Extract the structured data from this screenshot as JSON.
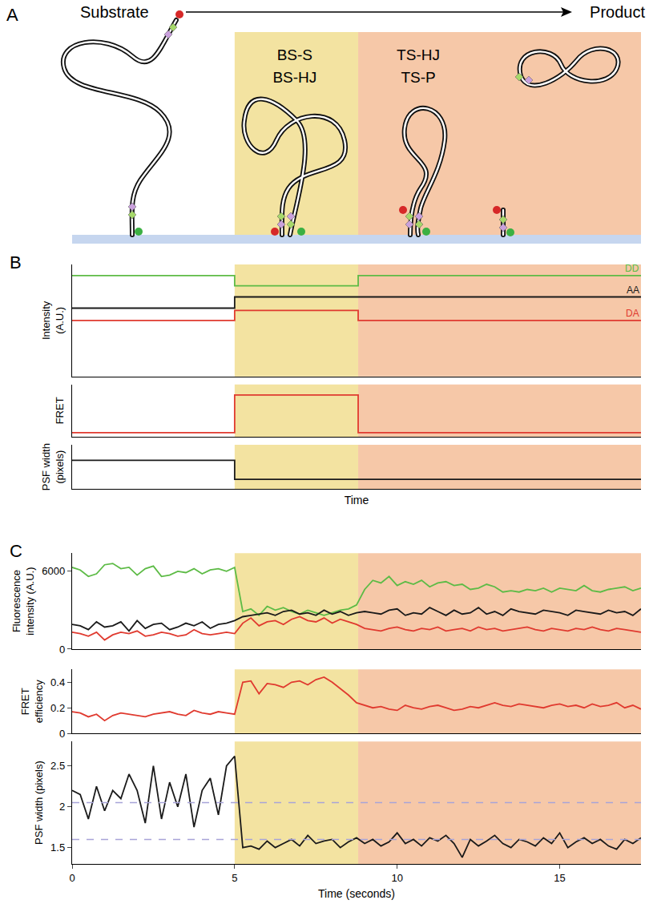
{
  "diagram": {
    "panel": "A",
    "start": "Substrate",
    "end": "Product",
    "stages": [
      {
        "lines": [
          "BS-S",
          "BS-HJ"
        ]
      },
      {
        "lines": [
          "TS-HJ",
          "TS-P"
        ]
      }
    ]
  },
  "chart_data": [
    {
      "type": "line",
      "title": "B",
      "ylabel": "Intensity\n(A.U.)",
      "x": [
        0,
        5,
        8.8,
        17.5
      ],
      "series": [
        {
          "name": "DD",
          "color": "#5dbb46",
          "values": [
            0.9,
            0.81,
            0.9,
            0.9
          ]
        },
        {
          "name": "AA",
          "color": "#1a1a1a",
          "values": [
            0.61,
            0.71,
            0.71,
            0.71
          ]
        },
        {
          "name": "DA",
          "color": "#e03a2f",
          "values": [
            0.5,
            0.59,
            0.5,
            0.5
          ]
        }
      ],
      "xlim": [
        0,
        17.5
      ],
      "ylim": [
        0,
        1
      ],
      "tick_labels": false,
      "line_style": "step",
      "regions": [
        {
          "x0": 5,
          "x1": 8.8,
          "color": "#f3e3a1"
        },
        {
          "x0": 8.8,
          "x1": 17.5,
          "color": "#f6c8a8"
        }
      ]
    },
    {
      "type": "line",
      "ylabel": "FRET",
      "x": [
        0,
        5,
        8.8,
        17.5
      ],
      "color": "#e03a2f",
      "values": [
        0.08,
        0.8,
        0.08,
        0.08
      ],
      "xlim": [
        0,
        17.5
      ],
      "ylim": [
        0,
        1
      ],
      "tick_labels": false,
      "line_style": "step",
      "regions": [
        {
          "x0": 5,
          "x1": 8.8,
          "color": "#f3e3a1"
        },
        {
          "x0": 8.8,
          "x1": 17.5,
          "color": "#f6c8a8"
        }
      ]
    },
    {
      "type": "line",
      "ylabel": "PSF width\n(pixels)",
      "xlabel": "Time",
      "x": [
        0,
        5,
        8.8,
        17.5
      ],
      "color": "#1a1a1a",
      "values": [
        0.65,
        0.22,
        0.22,
        0.22
      ],
      "xlim": [
        0,
        17.5
      ],
      "ylim": [
        0,
        1
      ],
      "tick_labels": false,
      "line_style": "step",
      "regions": [
        {
          "x0": 5,
          "x1": 8.8,
          "color": "#f3e3a1"
        },
        {
          "x0": 8.8,
          "x1": 17.5,
          "color": "#f6c8a8"
        }
      ]
    },
    {
      "type": "line",
      "title": "C",
      "ylabel": "Fluorescence\nintensity (A.U.)",
      "x": [
        0,
        0.25,
        0.5,
        0.75,
        1,
        1.25,
        1.5,
        1.75,
        2,
        2.25,
        2.5,
        2.75,
        3,
        3.25,
        3.5,
        3.75,
        4,
        4.25,
        4.5,
        4.75,
        5,
        5.25,
        5.5,
        5.75,
        6,
        6.25,
        6.5,
        6.75,
        7,
        7.25,
        7.5,
        7.75,
        8,
        8.25,
        8.5,
        8.75,
        9,
        9.25,
        9.5,
        9.75,
        10,
        10.25,
        10.5,
        10.75,
        11,
        11.25,
        11.5,
        11.75,
        12,
        12.25,
        12.5,
        12.75,
        13,
        13.25,
        13.5,
        13.75,
        14,
        14.25,
        14.5,
        14.75,
        15,
        15.25,
        15.5,
        15.75,
        16,
        16.25,
        16.5,
        16.75,
        17,
        17.25,
        17.5
      ],
      "series": [
        {
          "color": "#5dbb46",
          "values": [
            6300,
            6100,
            5600,
            5800,
            6500,
            6600,
            6200,
            6300,
            5700,
            6200,
            6400,
            5600,
            5700,
            6000,
            5900,
            6200,
            5800,
            6100,
            6200,
            6000,
            6300,
            2900,
            3100,
            2600,
            3300,
            3000,
            3200,
            2900,
            2700,
            3000,
            2800,
            2600,
            2800,
            3000,
            3100,
            3400,
            4600,
            5300,
            5100,
            5600,
            4900,
            5200,
            5000,
            5300,
            4800,
            5100,
            5200,
            4900,
            5000,
            4600,
            4700,
            5000,
            4800,
            4400,
            4500,
            4400,
            4600,
            4500,
            4700,
            4400,
            4700,
            4600,
            4500,
            4900,
            4500,
            4400,
            4600,
            4700,
            4800,
            4500,
            4700
          ]
        },
        {
          "color": "#1a1a1a",
          "values": [
            1900,
            1800,
            1500,
            2100,
            1700,
            1800,
            2100,
            1400,
            2200,
            1600,
            1900,
            2000,
            1500,
            1700,
            2000,
            1800,
            2100,
            1600,
            1900,
            2000,
            2200,
            2500,
            2600,
            2700,
            2800,
            2600,
            2900,
            3000,
            2700,
            2800,
            2600,
            3000,
            2700,
            2900,
            2600,
            2800,
            2900,
            2800,
            2700,
            3000,
            3100,
            2600,
            2800,
            2700,
            3200,
            2900,
            2600,
            3000,
            2700,
            2800,
            3200,
            2700,
            2900,
            2600,
            3100,
            2900,
            2800,
            2700,
            3000,
            2900,
            2800,
            2600,
            3000,
            2900,
            2800,
            2700,
            3000,
            2800,
            2900,
            2600,
            3100
          ]
        },
        {
          "color": "#e03a2f",
          "values": [
            1300,
            1200,
            1000,
            1300,
            700,
            1100,
            1300,
            1200,
            1400,
            1000,
            1100,
            1300,
            1200,
            1000,
            1100,
            1500,
            1200,
            1100,
            1200,
            1300,
            1200,
            2000,
            2400,
            1800,
            2100,
            2200,
            1900,
            2300,
            2500,
            2200,
            2100,
            2400,
            2000,
            2300,
            2100,
            1900,
            1600,
            1500,
            1400,
            1600,
            1700,
            1500,
            1400,
            1600,
            1500,
            1700,
            1400,
            1500,
            1600,
            1400,
            1700,
            1500,
            1600,
            1400,
            1500,
            1600,
            1700,
            1500,
            1400,
            1600,
            1500,
            1400,
            1600,
            1500,
            1700,
            1500,
            1400,
            1600,
            1500,
            1400,
            1300
          ]
        }
      ],
      "xlim": [
        0,
        17.5
      ],
      "ylim": [
        0,
        7400
      ],
      "yticks": [
        0,
        6000
      ],
      "tick_labels": "y",
      "regions": [
        {
          "x0": 5,
          "x1": 8.8,
          "color": "#f3e3a1"
        },
        {
          "x0": 8.8,
          "x1": 17.5,
          "color": "#f6c8a8"
        }
      ]
    },
    {
      "type": "line",
      "ylabel": "FRET\nefficiency",
      "x": [
        0,
        0.25,
        0.5,
        0.75,
        1,
        1.25,
        1.5,
        1.75,
        2,
        2.25,
        2.5,
        2.75,
        3,
        3.25,
        3.5,
        3.75,
        4,
        4.25,
        4.5,
        4.75,
        5,
        5.25,
        5.5,
        5.75,
        6,
        6.25,
        6.5,
        6.75,
        7,
        7.25,
        7.5,
        7.75,
        8,
        8.25,
        8.5,
        8.75,
        9,
        9.25,
        9.5,
        9.75,
        10,
        10.25,
        10.5,
        10.75,
        11,
        11.25,
        11.5,
        11.75,
        12,
        12.25,
        12.5,
        12.75,
        13,
        13.25,
        13.5,
        13.75,
        14,
        14.25,
        14.5,
        14.75,
        15,
        15.25,
        15.5,
        15.75,
        16,
        16.25,
        16.5,
        16.75,
        17,
        17.25,
        17.5
      ],
      "color": "#e03a2f",
      "values": [
        0.17,
        0.16,
        0.13,
        0.15,
        0.1,
        0.14,
        0.16,
        0.15,
        0.14,
        0.13,
        0.15,
        0.16,
        0.17,
        0.15,
        0.14,
        0.18,
        0.16,
        0.15,
        0.17,
        0.16,
        0.15,
        0.4,
        0.41,
        0.31,
        0.39,
        0.38,
        0.36,
        0.4,
        0.41,
        0.38,
        0.42,
        0.44,
        0.4,
        0.35,
        0.3,
        0.24,
        0.22,
        0.2,
        0.21,
        0.19,
        0.18,
        0.22,
        0.2,
        0.19,
        0.21,
        0.22,
        0.2,
        0.18,
        0.19,
        0.21,
        0.2,
        0.22,
        0.24,
        0.22,
        0.21,
        0.23,
        0.22,
        0.21,
        0.2,
        0.22,
        0.23,
        0.21,
        0.22,
        0.2,
        0.23,
        0.21,
        0.22,
        0.24,
        0.2,
        0.22,
        0.19
      ],
      "xlim": [
        0,
        17.5
      ],
      "ylim": [
        0,
        0.5
      ],
      "yticks": [
        0,
        0.2,
        0.4
      ],
      "tick_labels": "y",
      "regions": [
        {
          "x0": 5,
          "x1": 8.8,
          "color": "#f3e3a1"
        },
        {
          "x0": 8.8,
          "x1": 17.5,
          "color": "#f6c8a8"
        }
      ]
    },
    {
      "type": "line",
      "ylabel": "PSF width (pixels)",
      "xlabel": "Time (seconds)",
      "x": [
        0,
        0.25,
        0.5,
        0.75,
        1,
        1.25,
        1.5,
        1.75,
        2,
        2.25,
        2.5,
        2.75,
        3,
        3.25,
        3.5,
        3.75,
        4,
        4.25,
        4.5,
        4.75,
        5,
        5.25,
        5.5,
        5.75,
        6,
        6.25,
        6.5,
        6.75,
        7,
        7.25,
        7.5,
        7.75,
        8,
        8.25,
        8.5,
        8.75,
        9,
        9.25,
        9.5,
        9.75,
        10,
        10.25,
        10.5,
        10.75,
        11,
        11.25,
        11.5,
        11.75,
        12,
        12.25,
        12.5,
        12.75,
        13,
        13.25,
        13.5,
        13.75,
        14,
        14.25,
        14.5,
        14.75,
        15,
        15.25,
        15.5,
        15.75,
        16,
        16.25,
        16.5,
        16.75,
        17,
        17.25,
        17.5
      ],
      "color": "#1a1a1a",
      "values": [
        2.2,
        2.15,
        1.85,
        2.25,
        1.95,
        2.2,
        2.1,
        2.4,
        2.2,
        1.8,
        2.5,
        1.85,
        2.3,
        2.0,
        2.4,
        1.75,
        2.2,
        2.35,
        1.9,
        2.5,
        2.62,
        1.5,
        1.52,
        1.48,
        1.58,
        1.5,
        1.55,
        1.6,
        1.52,
        1.65,
        1.55,
        1.58,
        1.6,
        1.5,
        1.57,
        1.62,
        1.55,
        1.6,
        1.52,
        1.57,
        1.68,
        1.55,
        1.6,
        1.52,
        1.62,
        1.58,
        1.65,
        1.55,
        1.38,
        1.6,
        1.52,
        1.58,
        1.65,
        1.55,
        1.5,
        1.6,
        1.57,
        1.52,
        1.62,
        1.55,
        1.68,
        1.5,
        1.57,
        1.62,
        1.55,
        1.6,
        1.52,
        1.48,
        1.6,
        1.55,
        1.62
      ],
      "xlim": [
        0,
        17.5
      ],
      "xticks": [
        0,
        5,
        10,
        15
      ],
      "ylim": [
        1.3,
        2.8
      ],
      "yticks": [
        1.5,
        2,
        2.5
      ],
      "reference_lines": {
        "values": [
          2.05,
          1.6
        ],
        "color": "#a8a4d8",
        "line_style": "dashed"
      },
      "regions": [
        {
          "x0": 5,
          "x1": 8.8,
          "color": "#f3e3a1"
        },
        {
          "x0": 8.8,
          "x1": 17.5,
          "color": "#f6c8a8"
        }
      ]
    }
  ]
}
